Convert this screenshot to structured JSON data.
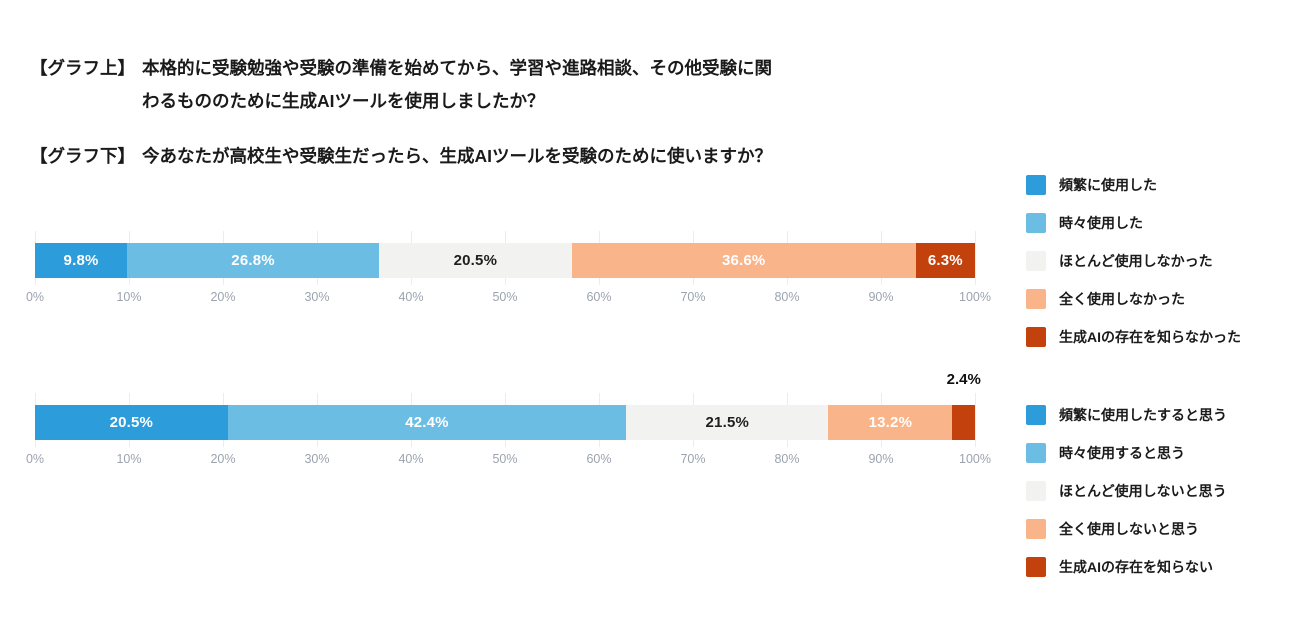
{
  "page": {
    "background": "#ffffff"
  },
  "header": {
    "graph_top": {
      "tag": "【グラフ上】",
      "line1": "本格的に受験勉強や受験の準備を始めてから、学習や進路相談、その他受験に関",
      "line2": "わるもののために生成AIツールを使用しましたか？"
    },
    "graph_bottom": {
      "tag": "【グラフ下】",
      "line1": "今あなたが高校生や受験生だったら、生成AIツールを受験のために使いますか？"
    }
  },
  "colors": {
    "frequent_blue": "#2d9cdb",
    "sometimes_blue": "#6cbde4",
    "rarely_gray": "#f2f2f1",
    "never_peach": "#fab489",
    "unknown_brick": "#c2410c",
    "tick_gray": "#9ca3af",
    "gridline": "#ececec"
  },
  "chart_data": [
    {
      "type": "bar",
      "stacked": true,
      "orientation": "horizontal",
      "title": "本格的に受験勉強や受験の準備を始めてから、学習や進路相談、その他受験に関わるもののために生成AIツールを使用しましたか？",
      "categories": [
        "頻繁に使用した",
        "時々使用した",
        "ほとんど使用しなかった",
        "全く使用しなかった",
        "生成AIの存在を知らなかった"
      ],
      "values": [
        9.8,
        26.8,
        20.5,
        36.6,
        6.3
      ],
      "value_labels": [
        "9.8%",
        "26.8%",
        "20.5%",
        "36.6%",
        "6.3%"
      ],
      "colors": [
        "#2d9cdb",
        "#6cbde4",
        "#f2f2f1",
        "#fab489",
        "#c2410c"
      ],
      "label_colors": [
        "#ffffff",
        "#ffffff",
        "#1f1f1f",
        "#ffffff",
        "#ffffff"
      ],
      "label_placement": [
        "inside",
        "inside",
        "inside",
        "inside",
        "inside"
      ],
      "xlim": [
        0,
        100
      ],
      "ticks": [
        "0%",
        "10%",
        "20%",
        "30%",
        "40%",
        "50%",
        "60%",
        "70%",
        "80%",
        "90%",
        "100%"
      ],
      "grid": true,
      "legend_position": "right"
    },
    {
      "type": "bar",
      "stacked": true,
      "orientation": "horizontal",
      "title": "今あなたが高校生や受験生だったら、生成AIツールを受験のために使いますか？",
      "categories": [
        "頻繁に使用したすると思う",
        "時々使用すると思う",
        "ほとんど使用しないと思う",
        "全く使用しないと思う",
        "生成AIの存在を知らない"
      ],
      "values": [
        20.5,
        42.4,
        21.5,
        13.2,
        2.4
      ],
      "value_labels": [
        "20.5%",
        "42.4%",
        "21.5%",
        "13.2%",
        "2.4%"
      ],
      "colors": [
        "#2d9cdb",
        "#6cbde4",
        "#f2f2f1",
        "#fab489",
        "#c2410c"
      ],
      "label_colors": [
        "#ffffff",
        "#ffffff",
        "#1f1f1f",
        "#ffffff",
        "#111111"
      ],
      "label_placement": [
        "inside",
        "inside",
        "inside",
        "inside",
        "above"
      ],
      "xlim": [
        0,
        100
      ],
      "ticks": [
        "0%",
        "10%",
        "20%",
        "30%",
        "40%",
        "50%",
        "60%",
        "70%",
        "80%",
        "90%",
        "100%"
      ],
      "grid": true,
      "legend_position": "right"
    }
  ]
}
